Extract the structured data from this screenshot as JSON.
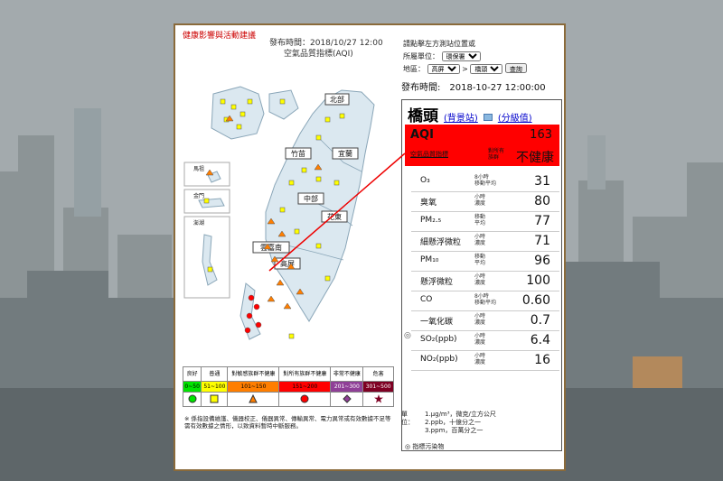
{
  "health_link": "健康影響與活動建議",
  "publish_header": {
    "time_line": "發布時間：2018/10/27 12:00",
    "title": "空氣品質指標(AQI)"
  },
  "controls": {
    "hint": "請點擊左方測站位置或",
    "unit_label": "所屬單位：",
    "unit_value": "環保署",
    "area_label": "地區：",
    "region_value": "高屏",
    "county_value": "橋頭",
    "query_button": "查詢",
    "arrow": ">"
  },
  "publish_right": {
    "label": "發布時間:",
    "value": "2018-10-27 12:00:00"
  },
  "station": {
    "name": "橋頭",
    "link_background": "(背景站)",
    "link_grade": "(分級值)",
    "aqi_label": "AQI",
    "aqi_value": "163",
    "aqi_sub": "空氣品質指標",
    "group_line1": "對所有",
    "group_line2": "族群",
    "status": "不健康"
  },
  "pollutants": [
    {
      "name_a": "O₃",
      "name_b": "(ppb)",
      "desc1": "8小時",
      "desc2": "移動平均",
      "value": "31"
    },
    {
      "name_a": "臭氧",
      "name_b": "",
      "desc1": "小時",
      "desc2": "濃度",
      "value": "80"
    },
    {
      "name_a": "PM₂.₅",
      "name_b": "(μg/m³)",
      "desc1": "移動",
      "desc2": "平均",
      "value": "77"
    },
    {
      "name_a": "細懸浮微粒",
      "name_b": "",
      "desc1": "小時",
      "desc2": "濃度",
      "value": "71"
    },
    {
      "name_a": "PM₁₀",
      "name_b": "(μg/m³)",
      "desc1": "移動",
      "desc2": "平均",
      "value": "96"
    },
    {
      "name_a": "懸浮微粒",
      "name_b": "",
      "desc1": "小時",
      "desc2": "濃度",
      "value": "100"
    },
    {
      "name_a": "CO",
      "name_b": "(ppm)",
      "desc1": "8小時",
      "desc2": "移動平均",
      "value": "0.60"
    },
    {
      "name_a": "一氧化碳",
      "name_b": "",
      "desc1": "小時",
      "desc2": "濃度",
      "value": "0.7"
    },
    {
      "name_a": "SO₂(ppb)",
      "name_b": "二氧化硫",
      "desc1": "小時",
      "desc2": "濃度",
      "value": "6.4"
    },
    {
      "name_a": "NO₂(ppb)",
      "name_b": "二氧化氮",
      "desc1": "小時",
      "desc2": "濃度",
      "value": "16"
    }
  ],
  "unit_note": {
    "label": "單位：",
    "line1": "1.μg/m³，微克/立方公尺",
    "line2": "2.ppb，十億分之一",
    "line3": "3.ppm，百萬分之一"
  },
  "marker_note": "指標污染物",
  "map_regions": [
    "北部",
    "竹苗",
    "宜蘭",
    "中部",
    "花東",
    "雲嘉南",
    "高屏",
    "馬祖",
    "金門",
    "澎湖"
  ],
  "legend": {
    "levels": [
      {
        "name": "良好",
        "range": "0~50",
        "color": "#00e400"
      },
      {
        "name": "普通",
        "range": "51~100",
        "color": "#ffff00"
      },
      {
        "name": "對敏感族群不健康",
        "range": "101~150",
        "color": "#ff7e00"
      },
      {
        "name": "對所有族群不健康",
        "range": "151~200",
        "color": "#ff0000"
      },
      {
        "name": "非常不健康",
        "range": "201~300",
        "color": "#8f3f97"
      },
      {
        "name": "危害",
        "range": "301~500",
        "color": "#7e0023"
      }
    ]
  },
  "footnote": "※ 係指設備維護、儀器校正、儀器異常、傳輸異常、電力異常或有效數據不足等需有效數據之情形，以致資料暫時中斷服務。"
}
